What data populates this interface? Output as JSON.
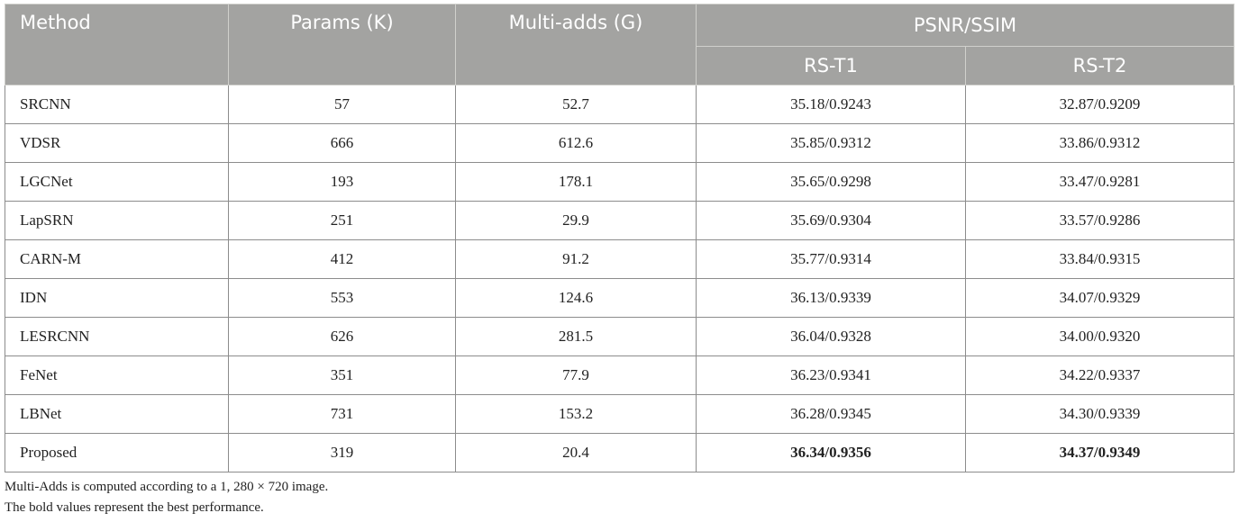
{
  "table": {
    "headers": {
      "method": "Method",
      "params": "Params (K)",
      "multi_adds": "Multi-adds (G)",
      "group": "PSNR/SSIM",
      "rs_t1": "RS-T1",
      "rs_t2": "RS-T2"
    },
    "rows": [
      {
        "method": "SRCNN",
        "params": "57",
        "multi_adds": "52.7",
        "rs_t1": "35.18/0.9243",
        "rs_t2": "32.87/0.9209",
        "bold": false
      },
      {
        "method": "VDSR",
        "params": "666",
        "multi_adds": "612.6",
        "rs_t1": "35.85/0.9312",
        "rs_t2": "33.86/0.9312",
        "bold": false
      },
      {
        "method": "LGCNet",
        "params": "193",
        "multi_adds": "178.1",
        "rs_t1": "35.65/0.9298",
        "rs_t2": "33.47/0.9281",
        "bold": false
      },
      {
        "method": "LapSRN",
        "params": "251",
        "multi_adds": "29.9",
        "rs_t1": "35.69/0.9304",
        "rs_t2": "33.57/0.9286",
        "bold": false
      },
      {
        "method": "CARN-M",
        "params": "412",
        "multi_adds": "91.2",
        "rs_t1": "35.77/0.9314",
        "rs_t2": "33.84/0.9315",
        "bold": false
      },
      {
        "method": "IDN",
        "params": "553",
        "multi_adds": "124.6",
        "rs_t1": "36.13/0.9339",
        "rs_t2": "34.07/0.9329",
        "bold": false
      },
      {
        "method": "LESRCNN",
        "params": "626",
        "multi_adds": "281.5",
        "rs_t1": "36.04/0.9328",
        "rs_t2": "34.00/0.9320",
        "bold": false
      },
      {
        "method": "FeNet",
        "params": "351",
        "multi_adds": "77.9",
        "rs_t1": "36.23/0.9341",
        "rs_t2": "34.22/0.9337",
        "bold": false
      },
      {
        "method": "LBNet",
        "params": "731",
        "multi_adds": "153.2",
        "rs_t1": "36.28/0.9345",
        "rs_t2": "34.30/0.9339",
        "bold": false
      },
      {
        "method": "Proposed",
        "params": "319",
        "multi_adds": "20.4",
        "rs_t1": "36.34/0.9356",
        "rs_t2": "34.37/0.9349",
        "bold": true
      }
    ]
  },
  "notes": {
    "line1": "Multi-Adds is computed according to a 1, 280 × 720 image.",
    "line2": "The bold values represent the best performance."
  },
  "colors": {
    "header_bg": "#a3a3a1",
    "header_text": "#ffffff",
    "border": "#8c8c8c"
  }
}
